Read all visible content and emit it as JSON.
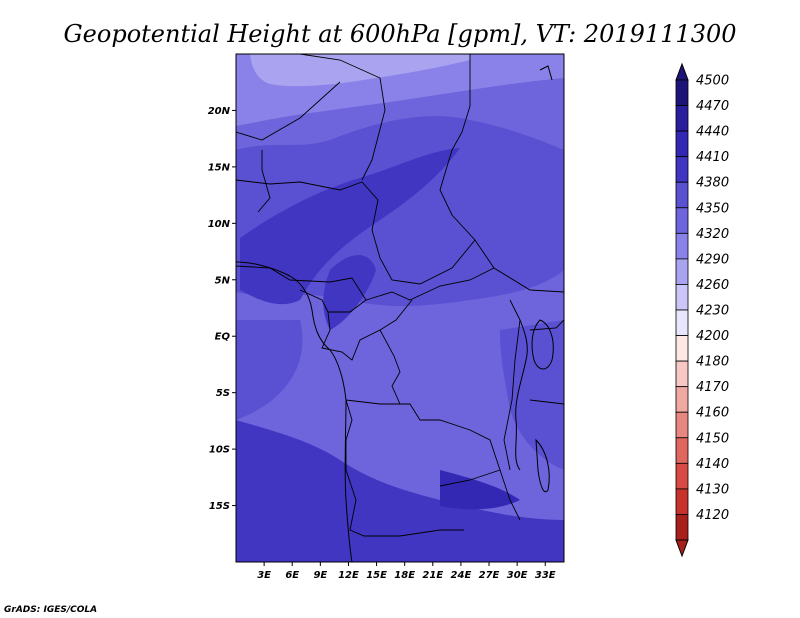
{
  "title": "Geopotential Height at 600hPa [gpm], VT: 2019111300",
  "credit": "GrADS: IGES/COLA",
  "map": {
    "lat_labels": [
      {
        "lat": 20,
        "label": "20N"
      },
      {
        "lat": 15,
        "label": "15N"
      },
      {
        "lat": 10,
        "label": "10N"
      },
      {
        "lat": 5,
        "label": "5N"
      },
      {
        "lat": 0,
        "label": "EQ"
      },
      {
        "lat": -5,
        "label": "5S"
      },
      {
        "lat": -10,
        "label": "10S"
      },
      {
        "lat": -15,
        "label": "15S"
      }
    ],
    "lon_labels": [
      {
        "lon": 3,
        "label": "3E"
      },
      {
        "lon": 6,
        "label": "6E"
      },
      {
        "lon": 9,
        "label": "9E"
      },
      {
        "lon": 12,
        "label": "12E"
      },
      {
        "lon": 15,
        "label": "15E"
      },
      {
        "lon": 18,
        "label": "18E"
      },
      {
        "lon": 21,
        "label": "21E"
      },
      {
        "lon": 24,
        "label": "24E"
      },
      {
        "lon": 27,
        "label": "27E"
      },
      {
        "lon": 30,
        "label": "30E"
      },
      {
        "lon": 33,
        "label": "33E"
      }
    ],
    "extent": {
      "lon_min": 0,
      "lon_max": 35,
      "lat_min": -20,
      "lat_max": 25
    }
  },
  "colorbar": {
    "levels": [
      {
        "value": "4500",
        "color": "#1e1478"
      },
      {
        "value": "4470",
        "color": "#2a1e9c"
      },
      {
        "value": "4440",
        "color": "#3228b4"
      },
      {
        "value": "4410",
        "color": "#4036c2"
      },
      {
        "value": "4380",
        "color": "#5a50d2"
      },
      {
        "value": "4350",
        "color": "#6e64dc"
      },
      {
        "value": "4320",
        "color": "#8a82e8"
      },
      {
        "value": "4290",
        "color": "#aaa4f0"
      },
      {
        "value": "4260",
        "color": "#cac6f8"
      },
      {
        "value": "4230",
        "color": "#e8e6fc"
      },
      {
        "value": "4200",
        "color": "#fde8e6"
      },
      {
        "value": "4180",
        "color": "#f8c8c4"
      },
      {
        "value": "4170",
        "color": "#f0a8a2"
      },
      {
        "value": "4160",
        "color": "#e88680"
      },
      {
        "value": "4150",
        "color": "#e06660"
      },
      {
        "value": "4140",
        "color": "#d84a44"
      },
      {
        "value": "4130",
        "color": "#c8322c"
      },
      {
        "value": "4120",
        "color": "#a8201c"
      }
    ],
    "top_cap_color": "#1e1478",
    "bottom_cap_color": "#a8201c"
  }
}
